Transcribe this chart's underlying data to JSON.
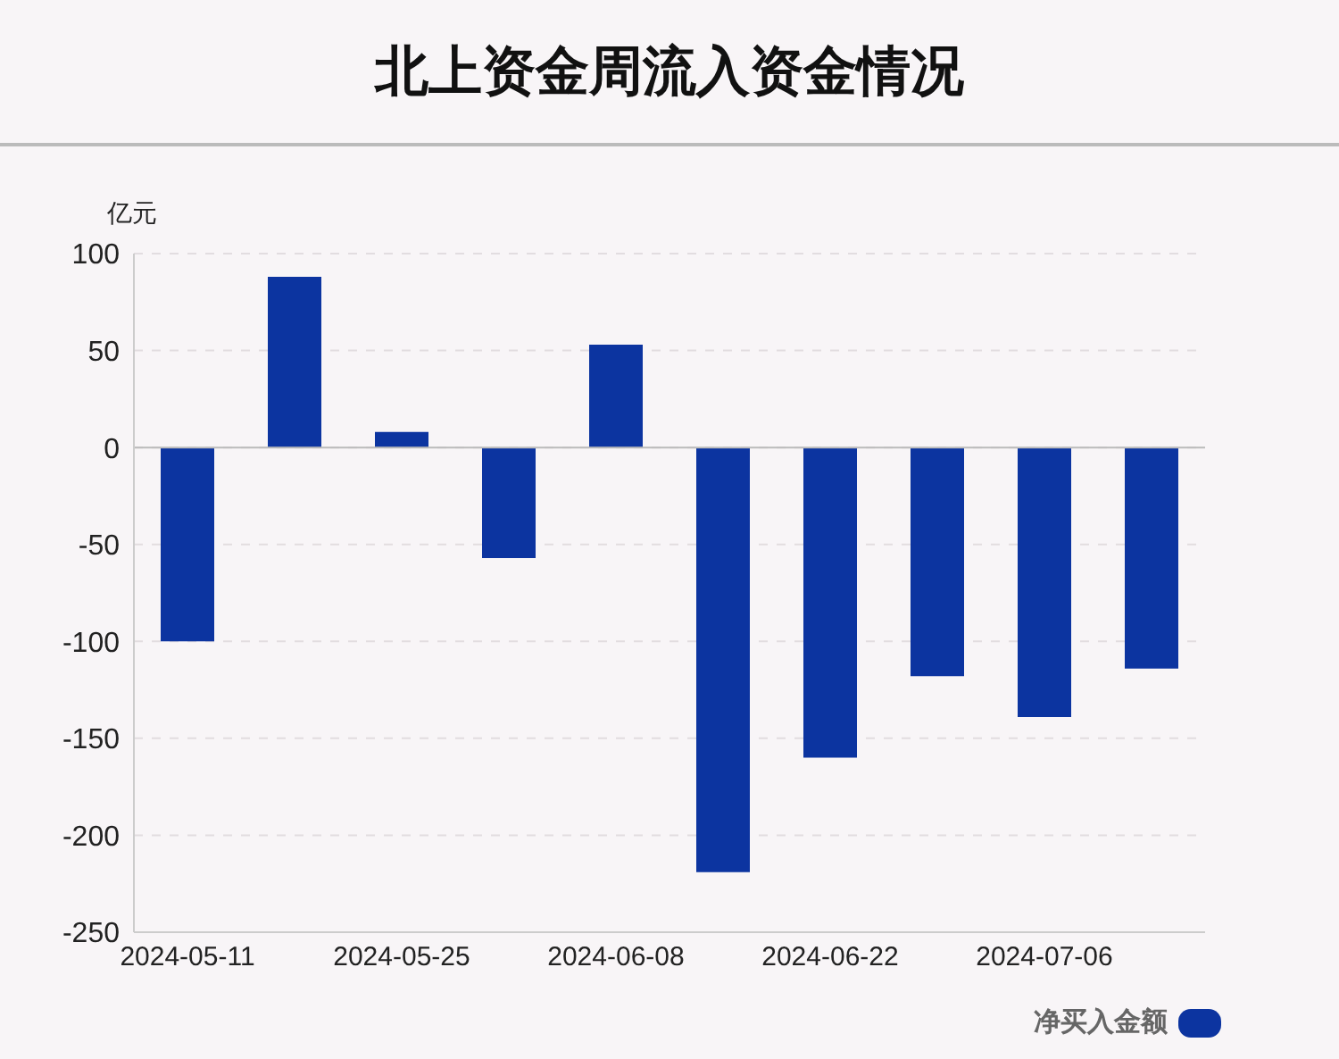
{
  "chart_data": {
    "type": "bar",
    "title": "北上资金周流入资金情况",
    "ylabel": "亿元",
    "categories": [
      "2024-05-11",
      null,
      "2024-05-25",
      null,
      "2024-06-08",
      null,
      "2024-06-22",
      null,
      "2024-07-06",
      null
    ],
    "series": [
      {
        "name": "净买入金额",
        "color": "#0c34a0",
        "values": [
          -100,
          88,
          8,
          -57,
          53,
          -219,
          -160,
          -118,
          -139,
          -114
        ]
      }
    ],
    "ylim": [
      -250,
      100
    ],
    "yticks": [
      -250,
      -200,
      -150,
      -100,
      -50,
      0,
      50,
      100
    ],
    "grid": "y",
    "legend": "bottom right"
  }
}
